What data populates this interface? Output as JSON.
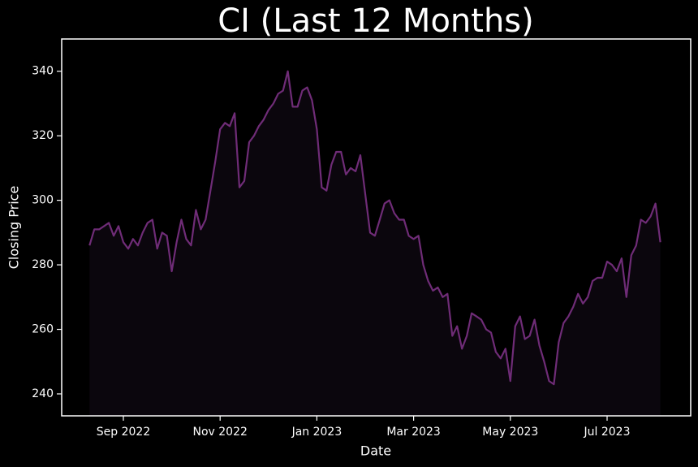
{
  "chart_data": {
    "type": "line",
    "title": "CI (Last 12 Months)",
    "xlabel": "Date",
    "ylabel": "Closing Price",
    "x": [
      "2022-08",
      "2022-08",
      "2022-08",
      "2022-08",
      "2022-08",
      "2022-08",
      "2022-08",
      "2022-09",
      "2022-09",
      "2022-09",
      "2022-09",
      "2022-09",
      "2022-09",
      "2022-09",
      "2022-09",
      "2022-09",
      "2022-09",
      "2022-10",
      "2022-10",
      "2022-10",
      "2022-10",
      "2022-10",
      "2022-10",
      "2022-10",
      "2022-10",
      "2022-10",
      "2022-10",
      "2022-11",
      "2022-11",
      "2022-11",
      "2022-11",
      "2022-11",
      "2022-11",
      "2022-11",
      "2022-11",
      "2022-11",
      "2022-11",
      "2022-12",
      "2022-12",
      "2022-12",
      "2022-12",
      "2022-12",
      "2022-12",
      "2022-12",
      "2022-12",
      "2022-12",
      "2022-12",
      "2023-01",
      "2023-01",
      "2023-01",
      "2023-01",
      "2023-01",
      "2023-01",
      "2023-01",
      "2023-01",
      "2023-01",
      "2023-01",
      "2023-02",
      "2023-02",
      "2023-02",
      "2023-02",
      "2023-02",
      "2023-02",
      "2023-02",
      "2023-02",
      "2023-02",
      "2023-02",
      "2023-03",
      "2023-03",
      "2023-03",
      "2023-03",
      "2023-03",
      "2023-03",
      "2023-03",
      "2023-03",
      "2023-03",
      "2023-03",
      "2023-04",
      "2023-04",
      "2023-04",
      "2023-04",
      "2023-04",
      "2023-04",
      "2023-04",
      "2023-04",
      "2023-04",
      "2023-04",
      "2023-05",
      "2023-05",
      "2023-05",
      "2023-05",
      "2023-05",
      "2023-05",
      "2023-05",
      "2023-05",
      "2023-05",
      "2023-05",
      "2023-06",
      "2023-06",
      "2023-06",
      "2023-06",
      "2023-06",
      "2023-06",
      "2023-06",
      "2023-06",
      "2023-06",
      "2023-06",
      "2023-07",
      "2023-07",
      "2023-07",
      "2023-07",
      "2023-07",
      "2023-07",
      "2023-07",
      "2023-07",
      "2023-07",
      "2023-07",
      "2023-08",
      "2023-08"
    ],
    "series": [
      {
        "name": "CI",
        "color": "#6f2c77",
        "fill": "#0b060d",
        "values": [
          286,
          291,
          291,
          292,
          293,
          289,
          292,
          287,
          285,
          288,
          286,
          290,
          293,
          294,
          285,
          290,
          289,
          278,
          287,
          294,
          288,
          286,
          297,
          291,
          294,
          303,
          312,
          322,
          324,
          323,
          327,
          304,
          306,
          318,
          320,
          323,
          325,
          328,
          330,
          333,
          334,
          340,
          329,
          329,
          334,
          335,
          331,
          322,
          304,
          303,
          311,
          315,
          315,
          308,
          310,
          309,
          314,
          302,
          290,
          289,
          294,
          299,
          300,
          296,
          294,
          294,
          289,
          288,
          289,
          280,
          275,
          272,
          273,
          270,
          271,
          258,
          261,
          254,
          258,
          265,
          264,
          263,
          260,
          259,
          253,
          251,
          254,
          244,
          261,
          264,
          257,
          258,
          263,
          255,
          250,
          244,
          243,
          256,
          262,
          264,
          267,
          271,
          268,
          270,
          275,
          276,
          276,
          281,
          280,
          278,
          282,
          270,
          283,
          286,
          294,
          293,
          295,
          299,
          287
        ]
      }
    ],
    "ylim": [
      233.2,
      350
    ],
    "yticks": [
      240,
      260,
      280,
      300,
      320,
      340
    ],
    "xticks": [
      {
        "value": "2022-09",
        "label": "Sep 2022"
      },
      {
        "value": "2022-11",
        "label": "Nov 2022"
      },
      {
        "value": "2023-01",
        "label": "Jan 2023"
      },
      {
        "value": "2023-03",
        "label": "Mar 2023"
      },
      {
        "value": "2023-05",
        "label": "May 2023"
      },
      {
        "value": "2023-07",
        "label": "Jul 2023"
      }
    ]
  }
}
